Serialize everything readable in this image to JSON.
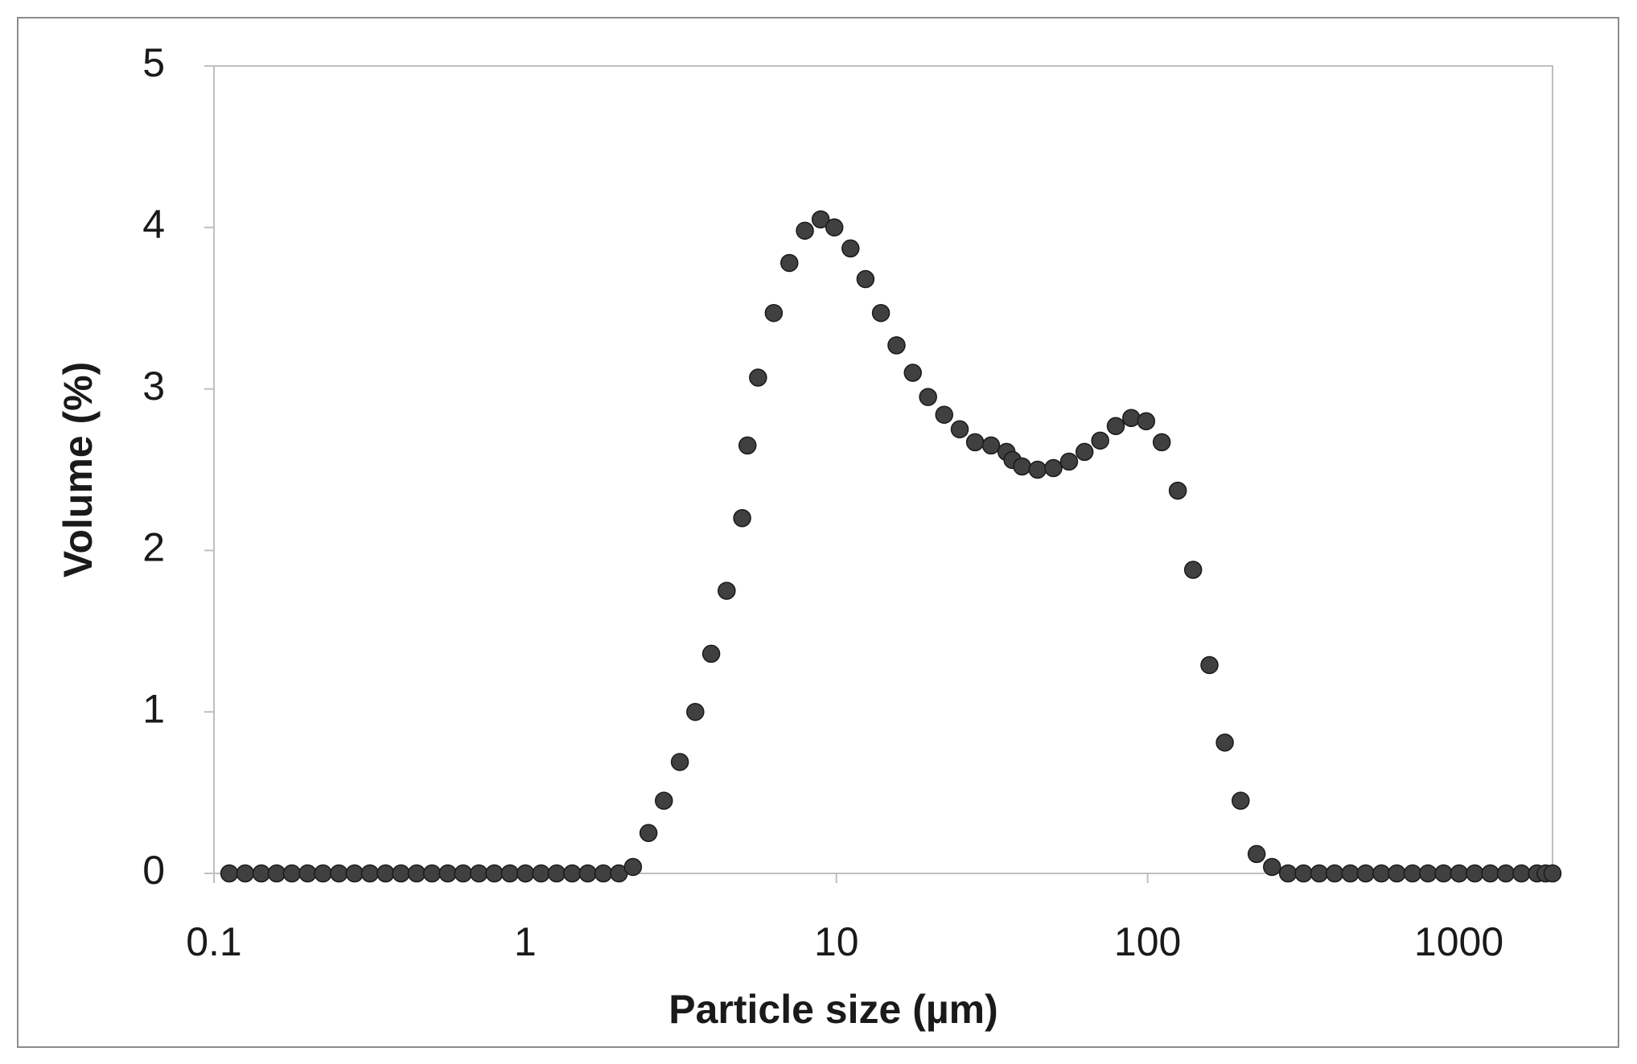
{
  "chart_data": {
    "type": "scatter",
    "x_label": "Particle size (µm)",
    "y_label": "Volume (%)",
    "xscale": "log",
    "xlim": [
      0.1,
      2000
    ],
    "xticks": [
      0.1,
      1,
      10,
      100,
      1000
    ],
    "ylim": [
      0,
      5
    ],
    "yticks": [
      0,
      1,
      2,
      3,
      4,
      5
    ],
    "grid": false,
    "color": "#404040",
    "x": [
      0.112,
      0.126,
      0.142,
      0.159,
      0.178,
      0.2,
      0.224,
      0.252,
      0.283,
      0.317,
      0.356,
      0.399,
      0.448,
      0.502,
      0.564,
      0.632,
      0.71,
      0.796,
      0.893,
      1.002,
      1.125,
      1.262,
      1.416,
      1.589,
      1.783,
      2.0,
      2.22,
      2.49,
      2.79,
      3.14,
      3.52,
      3.96,
      4.44,
      4.98,
      5.18,
      5.6,
      6.29,
      7.06,
      7.92,
      8.9,
      9.85,
      11.1,
      12.4,
      13.9,
      15.6,
      17.6,
      19.7,
      22.2,
      24.9,
      27.9,
      31.4,
      35.2,
      36.8,
      39.5,
      44.3,
      49.8,
      55.9,
      62.7,
      70.4,
      79.0,
      88.6,
      98.9,
      111,
      125,
      140,
      158,
      177,
      199,
      224,
      251,
      282.5,
      317,
      356,
      399,
      448,
      502,
      564,
      632,
      710,
      796,
      893,
      1002,
      1125,
      1262,
      1416,
      1589,
      1783,
      1900,
      2000
    ],
    "values": [
      0,
      0,
      0,
      0,
      0,
      0,
      0,
      0,
      0,
      0,
      0,
      0,
      0,
      0,
      0,
      0,
      0,
      0,
      0,
      0,
      0,
      0,
      0,
      0,
      0,
      0,
      0.04,
      0.25,
      0.45,
      0.69,
      1.0,
      1.36,
      1.75,
      2.2,
      2.65,
      3.07,
      3.47,
      3.78,
      3.98,
      4.05,
      4.0,
      3.87,
      3.68,
      3.47,
      3.27,
      3.1,
      2.95,
      2.84,
      2.75,
      2.67,
      2.65,
      2.61,
      2.56,
      2.52,
      2.5,
      2.51,
      2.55,
      2.61,
      2.68,
      2.77,
      2.82,
      2.8,
      2.67,
      2.37,
      1.88,
      1.29,
      0.81,
      0.45,
      0.12,
      0.04,
      0,
      0,
      0,
      0,
      0,
      0,
      0,
      0,
      0,
      0,
      0,
      0,
      0,
      0,
      0,
      0,
      0,
      0,
      0
    ]
  }
}
